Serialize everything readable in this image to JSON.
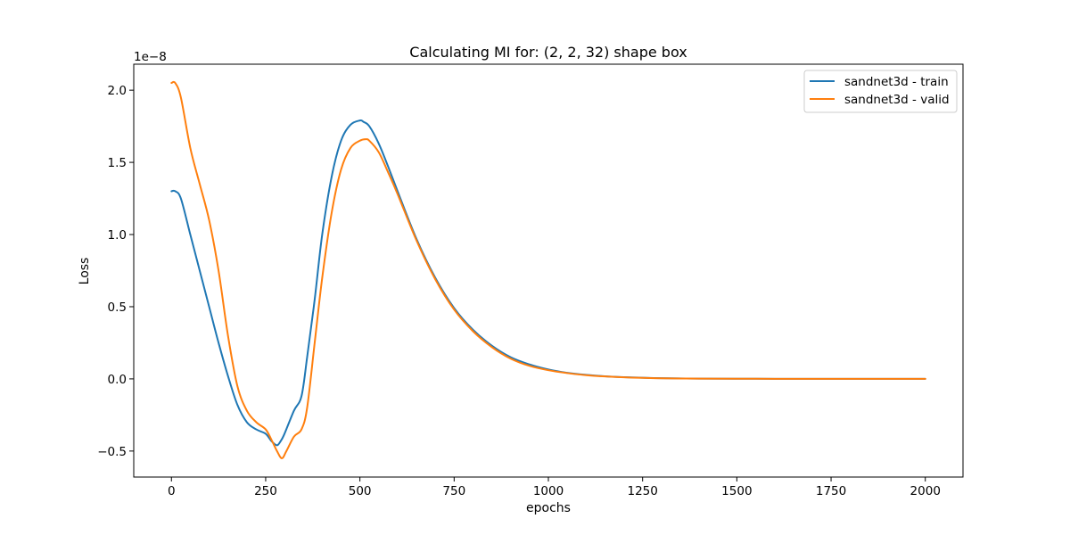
{
  "chart_data": {
    "type": "line",
    "title": "Calculating MI for: (2, 2, 32) shape box",
    "xlabel": "epochs",
    "ylabel": "Loss",
    "y_offset_text": "1e−8",
    "xlim": [
      -100,
      2100
    ],
    "ylim": [
      -0.68,
      2.18
    ],
    "xticks": [
      0,
      250,
      500,
      750,
      1000,
      1250,
      1500,
      1750,
      2000
    ],
    "xtick_labels": [
      "0",
      "250",
      "500",
      "750",
      "1000",
      "1250",
      "1500",
      "1750",
      "2000"
    ],
    "yticks": [
      -0.5,
      0.0,
      0.5,
      1.0,
      1.5,
      2.0
    ],
    "ytick_labels": [
      "−0.5",
      "0.0",
      "0.5",
      "1.0",
      "1.5",
      "2.0"
    ],
    "grid": false,
    "legend_position": "top-right",
    "series": [
      {
        "name": "sandnet3d - train",
        "color": "#1f77b4",
        "x": [
          0,
          10,
          25,
          50,
          75,
          100,
          125,
          150,
          175,
          200,
          225,
          250,
          265,
          280,
          290,
          300,
          325,
          345,
          360,
          380,
          400,
          425,
          450,
          475,
          500,
          510,
          525,
          550,
          575,
          600,
          650,
          700,
          750,
          800,
          850,
          900,
          950,
          1000,
          1050,
          1100,
          1150,
          1200,
          1250,
          1300,
          1400,
          1500,
          1600,
          1700,
          1800,
          1900,
          2000
        ],
        "y": [
          1.3,
          1.3,
          1.25,
          1.0,
          0.75,
          0.5,
          0.25,
          0.02,
          -0.18,
          -0.3,
          -0.35,
          -0.38,
          -0.43,
          -0.46,
          -0.43,
          -0.38,
          -0.22,
          -0.12,
          0.15,
          0.55,
          1.0,
          1.4,
          1.65,
          1.76,
          1.79,
          1.78,
          1.75,
          1.63,
          1.47,
          1.3,
          0.97,
          0.7,
          0.49,
          0.34,
          0.23,
          0.15,
          0.1,
          0.065,
          0.042,
          0.028,
          0.018,
          0.012,
          0.008,
          0.005,
          0.002,
          0.001,
          0.0005,
          0.0002,
          0.0001,
          0.0,
          0.0
        ]
      },
      {
        "name": "sandnet3d - valid",
        "color": "#ff7f0e",
        "x": [
          0,
          10,
          25,
          50,
          75,
          100,
          125,
          150,
          175,
          200,
          225,
          250,
          265,
          280,
          293,
          305,
          325,
          345,
          360,
          380,
          400,
          425,
          450,
          475,
          500,
          515,
          525,
          550,
          575,
          600,
          650,
          700,
          750,
          800,
          850,
          900,
          950,
          1000,
          1050,
          1100,
          1150,
          1200,
          1250,
          1300,
          1400,
          1500,
          1600,
          1700,
          1800,
          1900,
          2000
        ],
        "y": [
          2.05,
          2.05,
          1.95,
          1.6,
          1.35,
          1.1,
          0.75,
          0.3,
          -0.05,
          -0.22,
          -0.3,
          -0.35,
          -0.42,
          -0.5,
          -0.55,
          -0.5,
          -0.4,
          -0.35,
          -0.2,
          0.25,
          0.7,
          1.15,
          1.45,
          1.6,
          1.65,
          1.66,
          1.65,
          1.57,
          1.43,
          1.28,
          0.96,
          0.69,
          0.48,
          0.33,
          0.22,
          0.14,
          0.09,
          0.06,
          0.04,
          0.026,
          0.017,
          0.011,
          0.007,
          0.004,
          0.002,
          0.001,
          0.0005,
          0.0002,
          0.0001,
          0.0,
          0.0
        ]
      }
    ]
  }
}
